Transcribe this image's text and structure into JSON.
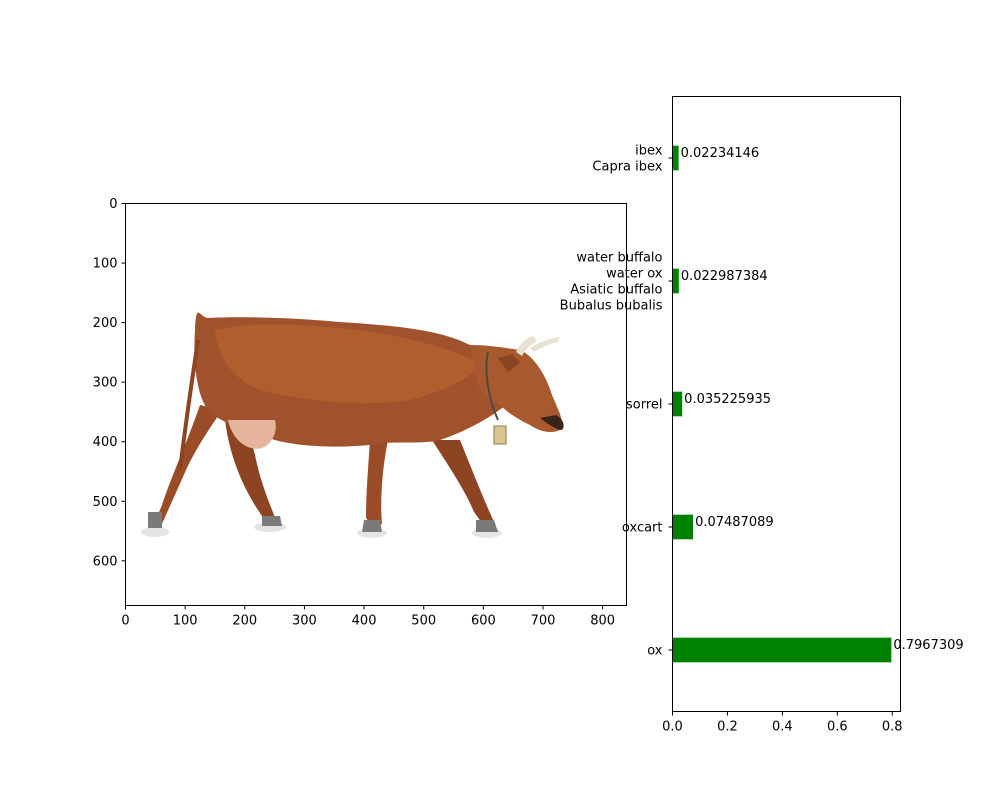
{
  "chart_data": [
    {
      "type": "image",
      "image_description": "brown cow walking left-to-right on white background",
      "xlim": [
        0,
        840
      ],
      "ylim": [
        675,
        0
      ],
      "xticks": [
        0,
        100,
        200,
        300,
        400,
        500,
        600,
        700,
        800
      ],
      "yticks": [
        0,
        100,
        200,
        300,
        400,
        500,
        600
      ]
    },
    {
      "type": "bar",
      "orientation": "horizontal",
      "categories": [
        "ox",
        "oxcart",
        "sorrel",
        "water buffalo\nwater ox\nAsiatic buffalo\nBubalus bubalis",
        "ibex\nCapra ibex"
      ],
      "values": [
        0.7967309,
        0.07487089,
        0.035225935,
        0.022987384,
        0.02234146
      ],
      "value_labels": [
        "0.7967309",
        "0.07487089",
        "0.035225935",
        "0.022987384",
        "0.02234146"
      ],
      "xlim": [
        0,
        0.83
      ],
      "xticks": [
        0.0,
        0.2,
        0.4,
        0.6,
        0.8
      ],
      "xtick_labels": [
        "0.0",
        "0.2",
        "0.4",
        "0.6",
        "0.8"
      ],
      "bar_color": "#008000"
    }
  ],
  "colors": {
    "cow_main": "#a0522d",
    "cow_light": "#c06d36",
    "cow_dark": "#6e3416",
    "udder": "#e6b49a"
  }
}
